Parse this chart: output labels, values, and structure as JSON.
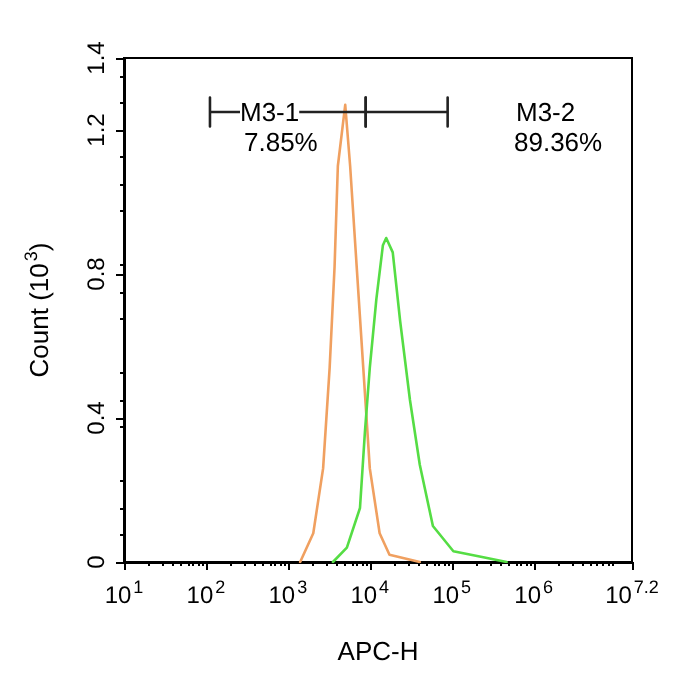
{
  "chart_data": {
    "type": "line",
    "xlabel": "APC-H",
    "ylabel": "Count (10$^{3}$)",
    "log": "x",
    "xlim": [
      10,
      15848932
    ],
    "xticks": [
      {
        "value": 10,
        "label": "10$^{1}$"
      },
      {
        "value": 100,
        "label": "10$^{2}$"
      },
      {
        "value": 1000,
        "label": "10$^{3}$"
      },
      {
        "value": 10000,
        "label": "10$^{4}$"
      },
      {
        "value": 100000,
        "label": "10$^{5}$"
      },
      {
        "value": 1000000,
        "label": "10$^{6}$"
      },
      {
        "value": 15848932,
        "label": "10$^{7.2}$"
      }
    ],
    "ylim": [
      0,
      1.4
    ],
    "yticks": [
      0,
      0.4,
      0.8,
      1.2,
      1.4
    ],
    "grid": false,
    "marker": "none",
    "line_style": "solid",
    "series": [
      {
        "color": "#f0a060",
        "x": [
          1413,
          2042,
          2692,
          3236,
          3715,
          4074,
          5012,
          5754,
          6918,
          8318,
          10000,
          13183,
          17378,
          40738
        ],
        "values": [
          0,
          0.08,
          0.26,
          0.54,
          0.82,
          1.1,
          1.27,
          1.1,
          0.82,
          0.54,
          0.26,
          0.08,
          0.02,
          0
        ]
      },
      {
        "color": "#55dd44",
        "x": [
          3548,
          5248,
          7586,
          8710,
          10000,
          12023,
          14454,
          15849,
          19055,
          23442,
          30903,
          40738,
          58884,
          104713,
          218776,
          467735
        ],
        "values": [
          0,
          0.04,
          0.15,
          0.36,
          0.54,
          0.73,
          0.88,
          0.9,
          0.86,
          0.67,
          0.45,
          0.27,
          0.1,
          0.03,
          0.015,
          0
        ]
      },
      {
        "color": "#222222",
        "x": [
          112,
          112,
          112,
          8913,
          8913,
          8913
        ],
        "values": [
          1.21,
          1.29,
          1.25,
          1.25,
          1.29,
          1.21
        ]
      },
      {
        "color": "#222222",
        "x": [
          8913,
          8913,
          8913,
          89125,
          89125,
          89125
        ],
        "values": [
          1.21,
          1.29,
          1.25,
          1.25,
          1.29,
          1.21
        ]
      }
    ],
    "annotations": [
      "M3-1",
      "7.85%",
      "M3-2",
      "89.36%"
    ]
  }
}
